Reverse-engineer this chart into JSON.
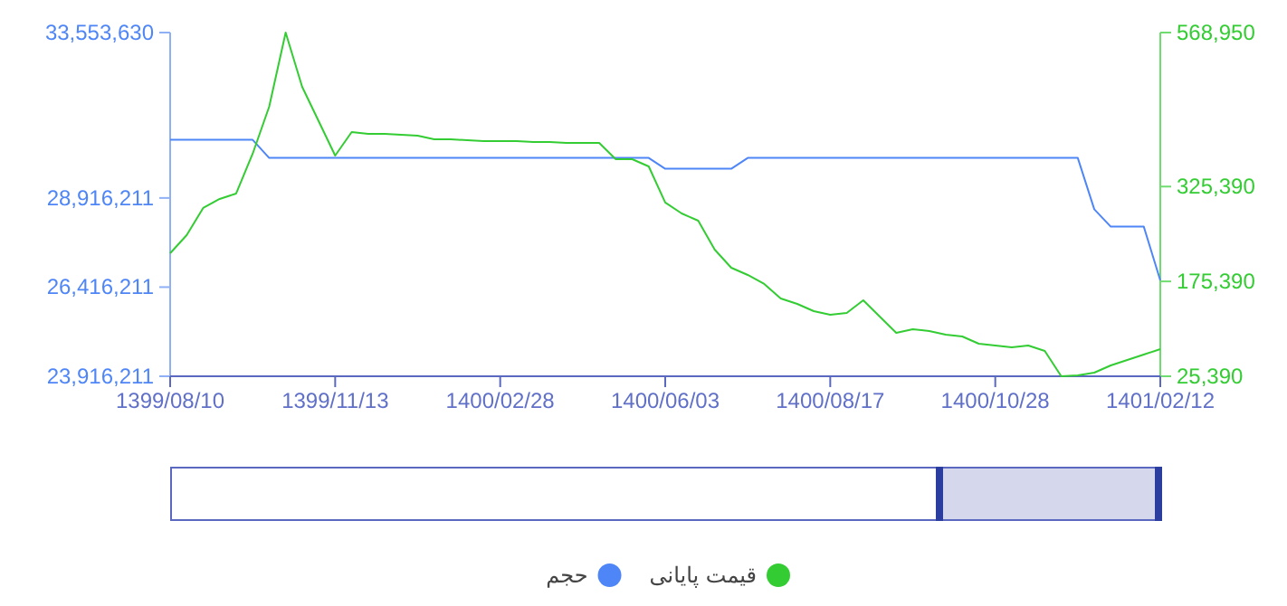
{
  "chart_data": {
    "type": "line",
    "categories": [
      "1399/08/10",
      null,
      null,
      null,
      null,
      null,
      null,
      null,
      null,
      null,
      "1399/11/13",
      null,
      null,
      null,
      null,
      null,
      null,
      null,
      null,
      null,
      "1400/02/28",
      null,
      null,
      null,
      null,
      null,
      null,
      null,
      null,
      null,
      "1400/06/03",
      null,
      null,
      null,
      null,
      null,
      null,
      null,
      null,
      null,
      "1400/08/17",
      null,
      null,
      null,
      null,
      null,
      null,
      null,
      null,
      null,
      "1400/10/28",
      null,
      null,
      null,
      null,
      null,
      null,
      null,
      null,
      null,
      "1401/02/12"
    ],
    "series": [
      {
        "name": "حجم",
        "color": "#4f86f7",
        "axis": "y",
        "values": [
          30545700,
          30545700,
          30545700,
          30545700,
          30545700,
          30545700,
          30038500,
          30038500,
          30038500,
          30038500,
          30038500,
          30038500,
          30038500,
          30038500,
          30038500,
          30038500,
          30038500,
          30038500,
          30038500,
          30038500,
          30038500,
          30038500,
          30038500,
          30038500,
          30038500,
          30038500,
          30038500,
          30038500,
          30038500,
          30038500,
          29734100,
          29734100,
          29734100,
          29734100,
          29734100,
          30038500,
          30038500,
          30038500,
          30038500,
          30038500,
          30038500,
          30038500,
          30038500,
          30038500,
          30038500,
          30038500,
          30038500,
          30038500,
          30038500,
          30038500,
          30038500,
          30038500,
          30038500,
          30038500,
          30038500,
          30038500,
          28600000,
          28111000,
          28111000,
          28111000,
          26604500
        ]
      },
      {
        "name": "قیمت پایانی",
        "color": "#33cc33",
        "axis": "y2",
        "values": [
          220000,
          248500,
          291500,
          305800,
          314400,
          377300,
          451700,
          568950,
          483100,
          428800,
          374400,
          411600,
          408800,
          408800,
          407400,
          405900,
          400200,
          400200,
          398700,
          397300,
          397300,
          397300,
          395900,
          395900,
          394500,
          394500,
          394500,
          368700,
          368700,
          357300,
          300100,
          282900,
          271400,
          225700,
          197000,
          185600,
          171300,
          148400,
          139800,
          128400,
          122700,
          125500,
          145500,
          119800,
          94100,
          99800,
          96900,
          91200,
          88300,
          76900,
          74000,
          71200,
          74000,
          65400,
          25390,
          26800,
          31100,
          42600,
          51100,
          59700,
          68300
        ]
      }
    ],
    "ylim": [
      23916211,
      33553630
    ],
    "yticks": [
      {
        "value": 23916211,
        "label": "23,916,211"
      },
      {
        "value": 26416211,
        "label": "26,416,211"
      },
      {
        "value": 28916211,
        "label": "28,916,211"
      },
      {
        "value": 33553630,
        "label": "33,553,630"
      }
    ],
    "y2lim": [
      25390,
      568950
    ],
    "y2ticks": [
      {
        "value": 25390,
        "label": "25,390"
      },
      {
        "value": 175390,
        "label": "175,390"
      },
      {
        "value": 325390,
        "label": "325,390"
      },
      {
        "value": 568950,
        "label": "568,950"
      }
    ],
    "legend": "bottom",
    "marker": "none",
    "grid": false
  }
}
